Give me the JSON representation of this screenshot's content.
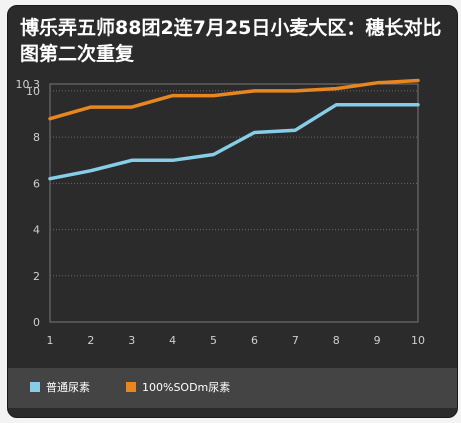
{
  "title": "博乐弄五师88团2连7月25日小麦大区：穗长对比图第二次重复",
  "colors": {
    "background": "#2b2b2b",
    "grid": "#6a6a6a",
    "series_blue": "#87cde8",
    "series_orange": "#e8861f",
    "legend_bg": "#444444"
  },
  "chart_data": {
    "type": "line",
    "title": "博乐弄五师88团2连7月25日小麦大区：穗长对比图第二次重复",
    "xlabel": "",
    "ylabel": "",
    "x": [
      1,
      2,
      3,
      4,
      5,
      6,
      7,
      8,
      9,
      10
    ],
    "x_ticks": [
      "1",
      "2",
      "3",
      "4",
      "5",
      "6",
      "7",
      "8",
      "9",
      "10"
    ],
    "y_ticks": [
      "0",
      "2",
      "4",
      "6",
      "8",
      "10",
      "10.3"
    ],
    "ylim": [
      0,
      10.3
    ],
    "grid": true,
    "legend_position": "bottom",
    "series": [
      {
        "name": "普通尿素",
        "color": "#87cde8",
        "values": [
          6.2,
          6.55,
          7.0,
          7.0,
          7.25,
          8.2,
          8.3,
          9.4,
          9.4,
          9.4
        ]
      },
      {
        "name": "100%SODm尿素",
        "color": "#e8861f",
        "values": [
          8.8,
          9.3,
          9.3,
          9.8,
          9.8,
          10.0,
          10.0,
          10.1,
          10.35,
          10.45
        ]
      }
    ]
  }
}
